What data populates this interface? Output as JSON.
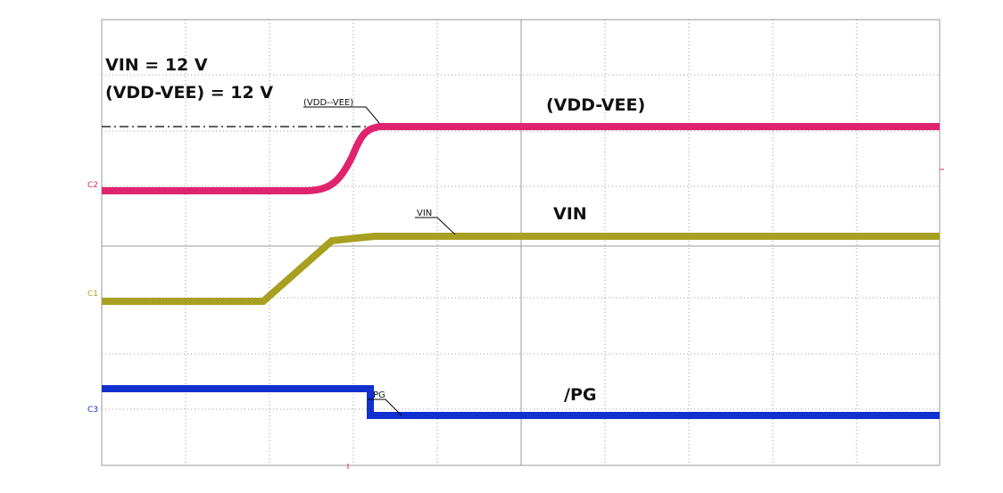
{
  "annotations": {
    "vin_setting": "VIN = 12 V",
    "vddvee_setting": "(VDD-VEE) = 12 V"
  },
  "labels": {
    "vddvee_small": "(VDD--VEE)",
    "vddvee": "(VDD-VEE)",
    "vin_small": "VIN",
    "vin": "VIN",
    "pg_small": "PG",
    "pg": "/PG"
  },
  "channels": {
    "c1": "C1",
    "c2": "C2",
    "c3": "C3"
  }
}
